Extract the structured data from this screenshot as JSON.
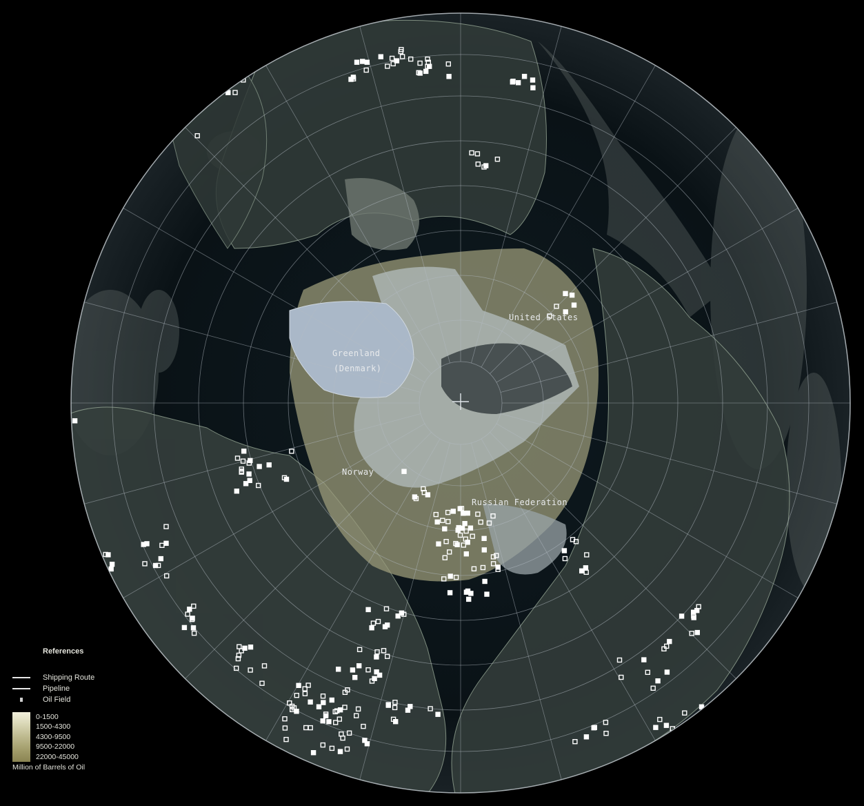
{
  "map": {
    "labels": {
      "greenland": "Greenland",
      "greenland_sub": "(Denmark)",
      "united_states": "United States",
      "norway": "Norway",
      "russia": "Russian Federation"
    }
  },
  "legend": {
    "title": "References",
    "shipping_route": "Shipping Route",
    "pipeline": "Pipeline",
    "oil_field": "Oil Field",
    "classes": [
      "0-1500",
      "1500-4300",
      "4300-9500",
      "9500-22000",
      "22000-45000"
    ],
    "unit": "Million of Barrels of Oil"
  },
  "colors": {
    "background": "#000000",
    "ocean": "#0c1418",
    "land": "#3a4240",
    "ice": "#a9b9c8",
    "oil_field": "#ffffff",
    "graticule": "#b4bcc4"
  }
}
